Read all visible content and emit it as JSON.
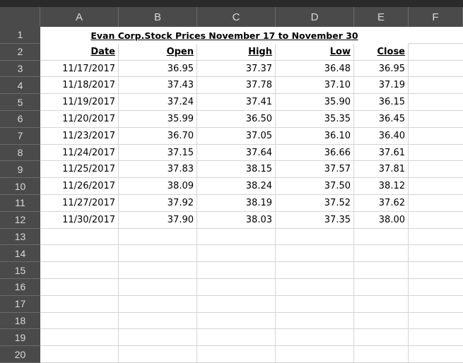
{
  "columns": [
    "A",
    "B",
    "C",
    "D",
    "E",
    "F"
  ],
  "rows": [
    "1",
    "2",
    "3",
    "4",
    "5",
    "6",
    "7",
    "8",
    "9",
    "10",
    "11",
    "12",
    "13",
    "14",
    "15",
    "16",
    "17",
    "18",
    "19",
    "20"
  ],
  "title": "Evan Corp.Stock Prices November 17 to November 30",
  "headers": [
    "Date",
    "Open",
    "High",
    "Low",
    "Close"
  ],
  "data": [
    [
      "11/17/2017",
      "36.95",
      "37.37",
      "36.48",
      "36.95"
    ],
    [
      "11/18/2017",
      "37.43",
      "37.78",
      "37.10",
      "37.19"
    ],
    [
      "11/19/2017",
      "37.24",
      "37.41",
      "35.90",
      "36.15"
    ],
    [
      "11/20/2017",
      "35.99",
      "36.50",
      "35.35",
      "36.45"
    ],
    [
      "11/23/2017",
      "36.70",
      "37.05",
      "36.10",
      "36.40"
    ],
    [
      "11/24/2017",
      "37.15",
      "37.64",
      "36.66",
      "37.61"
    ],
    [
      "11/25/2017",
      "37.83",
      "38.15",
      "37.57",
      "37.81"
    ],
    [
      "11/26/2017",
      "38.09",
      "38.24",
      "37.50",
      "38.12"
    ],
    [
      "11/27/2017",
      "37.92",
      "38.19",
      "37.52",
      "37.62"
    ],
    [
      "11/30/2017",
      "37.90",
      "38.03",
      "37.35",
      "38.00"
    ]
  ]
}
